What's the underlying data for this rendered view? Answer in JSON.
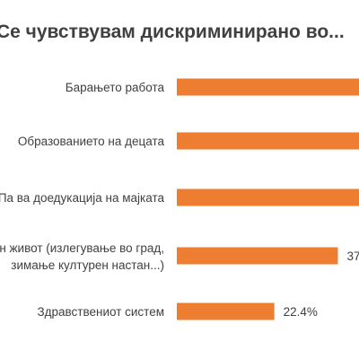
{
  "chart_data": {
    "type": "bar",
    "orientation": "horizontal",
    "title": "Се чувствувам дискриминирано во...",
    "categories": [
      [
        "Барањето работа"
      ],
      [
        "Образованието на децата"
      ],
      [
        "Па ва доедукација на мајката"
      ],
      [
        "Социјален живот (излегување во град,",
        "зимање културен настан...)"
      ],
      [
        "Здравствениот систем"
      ]
    ],
    "values": [
      45.0,
      45.0,
      45.0,
      37.0,
      22.4
    ],
    "data_labels": [
      "",
      "",
      "",
      "37",
      "22.4%"
    ],
    "bar_color": "#ED7D31",
    "grid": false,
    "legend": "none"
  }
}
